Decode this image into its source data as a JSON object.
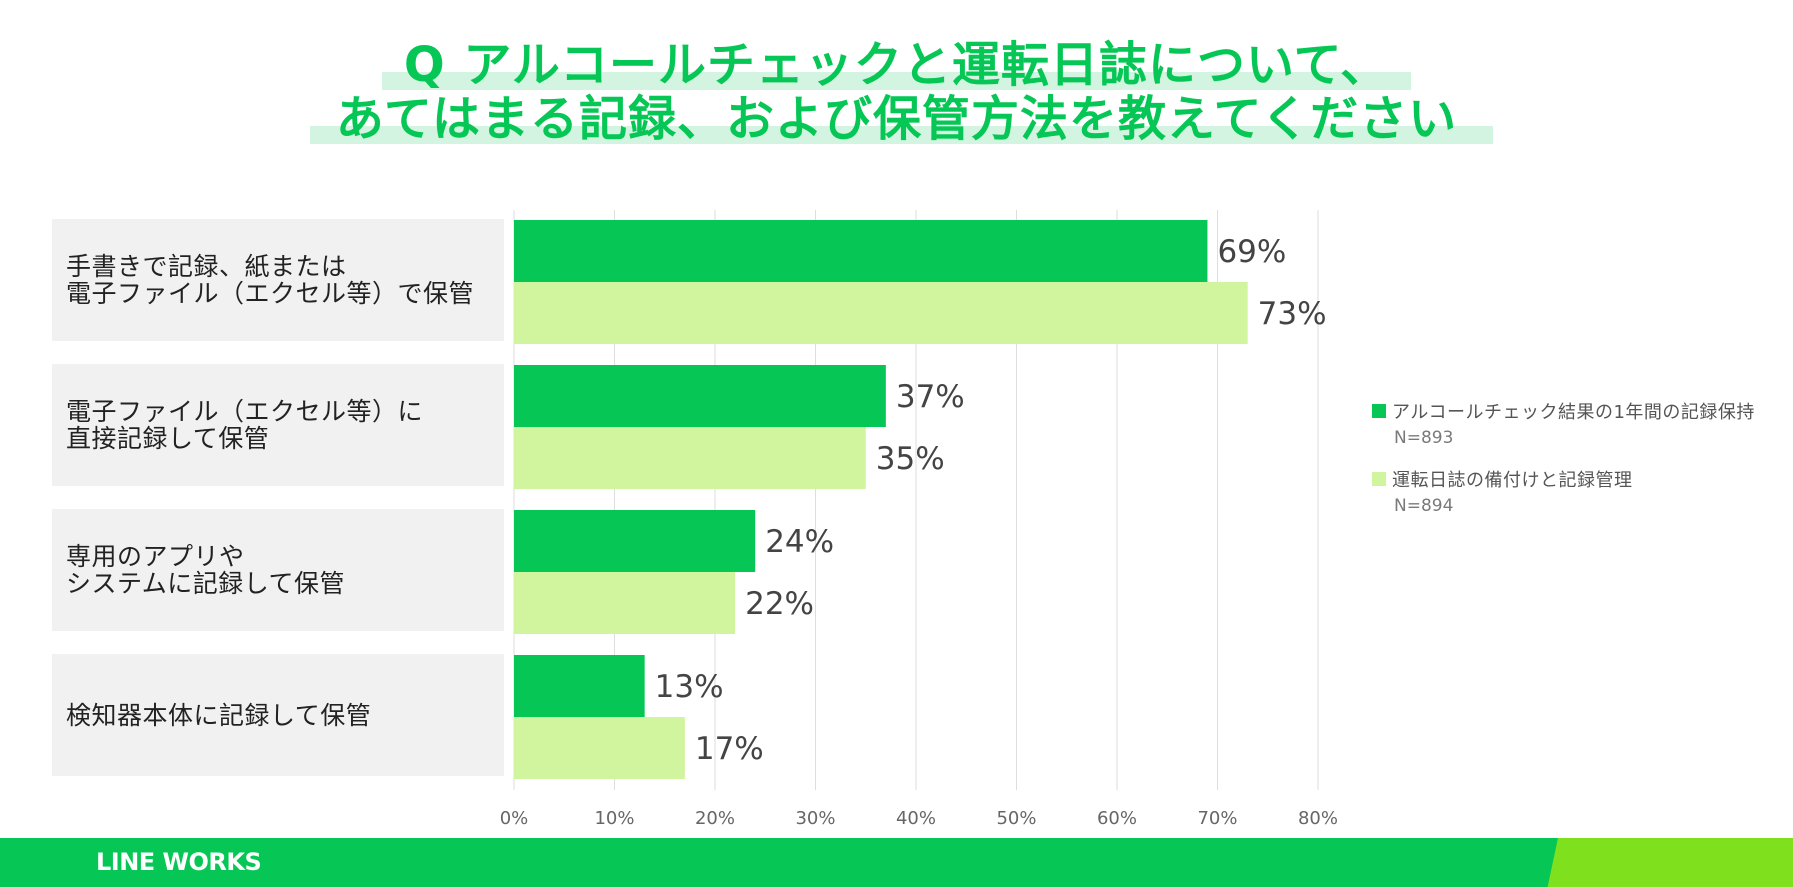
{
  "title": {
    "line1": "Q アルコールチェックと運転日誌について、",
    "line2": "あてはまる記録、および保管方法を教えてください"
  },
  "colors": {
    "series1": "#06c755",
    "series2": "#d0f59e",
    "accent": "#06c755",
    "accent2": "#7fe01d"
  },
  "chart_data": {
    "type": "bar",
    "orientation": "horizontal",
    "categories": [
      "手書きで記録、紙または\n電子ファイル（エクセル等）で保管",
      "電子ファイル（エクセル等）に\n直接記録して保管",
      "専用のアプリや\nシステムに記録して保管",
      "検知器本体に記録して保管"
    ],
    "series": [
      {
        "name": "アルコールチェック結果の1年間の記録保持",
        "n": "N=893",
        "values": [
          69,
          37,
          24,
          13
        ],
        "labels": [
          "69%",
          "37%",
          "24%",
          "13%"
        ]
      },
      {
        "name": "運転日誌の備付けと記録管理",
        "n": "N=894",
        "values": [
          73,
          35,
          22,
          17
        ],
        "labels": [
          "73%",
          "35%",
          "22%",
          "17%"
        ]
      }
    ],
    "xlim": [
      0,
      80
    ],
    "xticks": [
      "0%",
      "10%",
      "20%",
      "30%",
      "40%",
      "50%",
      "60%",
      "70%",
      "80%"
    ],
    "xtick_values": [
      0,
      10,
      20,
      30,
      40,
      50,
      60,
      70,
      80
    ],
    "grid": true,
    "legend": "right"
  },
  "footer": {
    "logo": "LINE WORKS"
  }
}
